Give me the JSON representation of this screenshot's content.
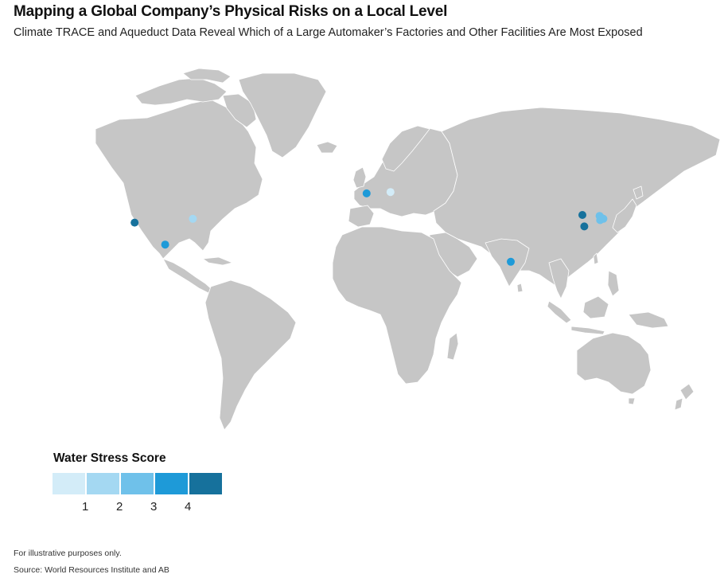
{
  "header": {
    "title": "Mapping a Global Company’s Physical Risks on a Local Level",
    "subtitle": "Climate TRACE and Aqueduct Data Reveal Which of a Large Automaker’s Factories and Other Facilities Are Most Exposed"
  },
  "legend": {
    "title": "Water Stress Score",
    "swatches": [
      {
        "color": "#d3ecf8"
      },
      {
        "color": "#a4d8f2"
      },
      {
        "color": "#6fc1ea"
      },
      {
        "color": "#1e9ad8"
      },
      {
        "color": "#16719c"
      }
    ],
    "labels": [
      "1",
      "2",
      "3",
      "4"
    ]
  },
  "map_colors": {
    "land": "#c6c6c6",
    "border": "#ffffff"
  },
  "facilities": [
    {
      "region": "California, USA",
      "lon": -117.0,
      "lat": 33.5,
      "score": 5
    },
    {
      "region": "Tennessee, USA",
      "lon": -86.5,
      "lat": 35.5,
      "score": 2
    },
    {
      "region": "Mexico",
      "lon": -101.0,
      "lat": 22.0,
      "score": 4
    },
    {
      "region": "France",
      "lon": 4.5,
      "lat": 48.8,
      "score": 4
    },
    {
      "region": "Czech Republic",
      "lon": 17.0,
      "lat": 49.5,
      "score": 1
    },
    {
      "region": "India",
      "lon": 80.0,
      "lat": 13.0,
      "score": 4
    },
    {
      "region": "China (north)",
      "lon": 117.5,
      "lat": 37.5,
      "score": 5
    },
    {
      "region": "China (east)",
      "lon": 118.5,
      "lat": 31.5,
      "score": 5
    },
    {
      "region": "South Korea",
      "lon": 126.5,
      "lat": 37.0,
      "score": 3
    },
    {
      "region": "South Korea",
      "lon": 127.5,
      "lat": 36.0,
      "score": 3
    },
    {
      "region": "South Korea",
      "lon": 128.5,
      "lat": 35.5,
      "score": 3
    },
    {
      "region": "South Korea",
      "lon": 126.8,
      "lat": 34.8,
      "score": 3
    }
  ],
  "footer": {
    "note": "For illustrative purposes only.",
    "source": "Source: World Resources Institute and AB"
  }
}
